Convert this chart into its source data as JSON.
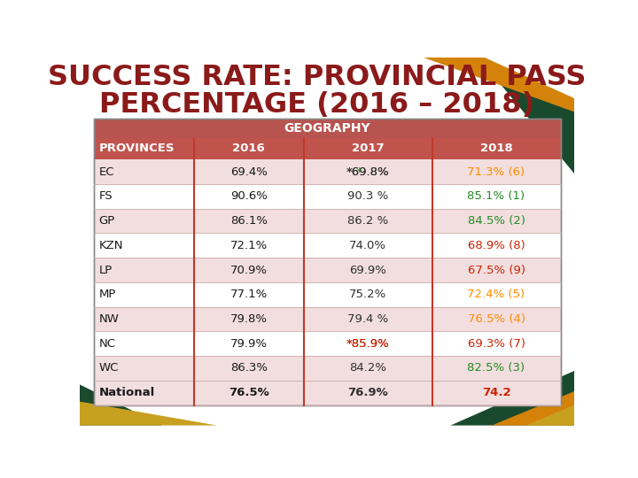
{
  "title_line1": "SUCCESS RATE: PROVINCIAL PASS",
  "title_line2": "PERCENTAGE (2016 – 2018)",
  "title_color": "#8B1A1A",
  "title_fontsize": 23,
  "geography_header": "GEOGRAPHY",
  "geo_header_bg": "#B85450",
  "geo_header_color": "white",
  "col_header_bg": "#C0544D",
  "col_header_color": "white",
  "columns": [
    "PROVINCES",
    "2016",
    "2017",
    "2018"
  ],
  "rows": [
    {
      "province": "EC",
      "y2016": "69.4%",
      "y2017": "*69.8%",
      "y2018_text": "71.3% (6)",
      "y2018_color": "#FF8C00",
      "y2017_star_color": "#228B22",
      "y2017_rest_color": "#2F2F2F",
      "row_bg": "#F2DEDE"
    },
    {
      "province": "FS",
      "y2016": "90.6%",
      "y2017": "90.3 %",
      "y2018_text": "85.1% (1)",
      "y2018_color": "#228B22",
      "y2017_star_color": null,
      "y2017_rest_color": "#2F2F2F",
      "row_bg": "#FFFFFF"
    },
    {
      "province": "GP",
      "y2016": "86.1%",
      "y2017": "86.2 %",
      "y2018_text": "84.5% (2)",
      "y2018_color": "#228B22",
      "y2017_star_color": null,
      "y2017_rest_color": "#2F2F2F",
      "row_bg": "#F2DEDE"
    },
    {
      "province": "KZN",
      "y2016": "72.1%",
      "y2017": "74.0%",
      "y2018_text": "68.9% (8)",
      "y2018_color": "#CC2200",
      "y2017_star_color": null,
      "y2017_rest_color": "#2F2F2F",
      "row_bg": "#FFFFFF"
    },
    {
      "province": "LP",
      "y2016": "70.9%",
      "y2017": "69.9%",
      "y2018_text": "67.5% (9)",
      "y2018_color": "#CC2200",
      "y2017_star_color": null,
      "y2017_rest_color": "#2F2F2F",
      "row_bg": "#F2DEDE"
    },
    {
      "province": "MP",
      "y2016": "77.1%",
      "y2017": "75.2%",
      "y2018_text": "72.4% (5)",
      "y2018_color": "#FF8C00",
      "y2017_star_color": null,
      "y2017_rest_color": "#2F2F2F",
      "row_bg": "#FFFFFF"
    },
    {
      "province": "NW",
      "y2016": "79.8%",
      "y2017": "79.4 %",
      "y2018_text": "76.5% (4)",
      "y2018_color": "#FF8C00",
      "y2017_star_color": null,
      "y2017_rest_color": "#2F2F2F",
      "row_bg": "#F2DEDE"
    },
    {
      "province": "NC",
      "y2016": "79.9%",
      "y2017": "*85.9%",
      "y2018_text": "69.3% (7)",
      "y2018_color": "#CC2200",
      "y2017_star_color": "#CC2200",
      "y2017_rest_color": "#CC2200",
      "row_bg": "#FFFFFF"
    },
    {
      "province": "WC",
      "y2016": "86.3%",
      "y2017": "84.2%",
      "y2018_text": "82.5% (3)",
      "y2018_color": "#228B22",
      "y2017_star_color": null,
      "y2017_rest_color": "#2F2F2F",
      "row_bg": "#F2DEDE"
    },
    {
      "province": "National",
      "y2016": "76.5%",
      "y2017": "76.9%",
      "y2018_text": "74.2",
      "y2018_color": "#CC2200",
      "y2017_star_color": null,
      "y2017_rest_color": "#2F2F2F",
      "row_bg": "#F2DEDE",
      "bold": true
    }
  ],
  "col_divider_color": "#C0392B",
  "row_divider_color": "#CCAAAA",
  "table_border_color": "#888888",
  "bg_color": "#FFFFFF",
  "deco_green": "#1A4A2E",
  "deco_orange": "#D4820A",
  "footer_green": "#1A4A2E",
  "footer_orange": "#D4820A",
  "footer_gold": "#C8A020"
}
